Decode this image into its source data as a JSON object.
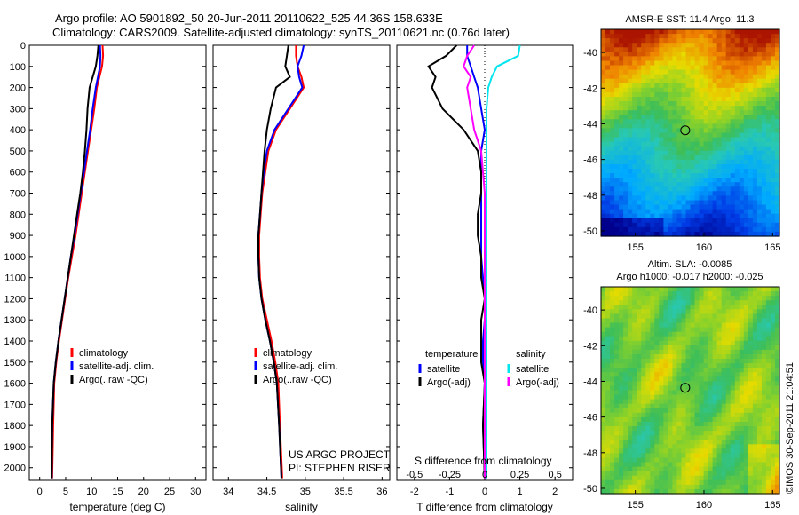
{
  "title_line1": "Argo profile: AO 5901892_50 20-Jun-2011 20110622_525 44.36S 158.633E",
  "title_line2": "Climatology: CARS2009. Satellite-adjusted climatology: synTS_20110621.nc (0.76d later)",
  "credit": "US ARGO PROJECT",
  "pi": "PI: STEPHEN RISER",
  "stamp": "©IMOS 30-Sep-2011 21:04:51",
  "colors": {
    "climatology": "#ff0000",
    "satellite": "#0000ff",
    "argo": "#000000",
    "satellite_s": "#00e5ee",
    "argo_s": "#ff00ff"
  },
  "chart_data": [
    {
      "type": "line",
      "xlabel": "temperature (deg C)",
      "ylabel": "",
      "xlim": [
        -2,
        32
      ],
      "ylim": [
        2060,
        0
      ],
      "xticks": [
        0,
        5,
        10,
        15,
        20,
        25,
        30
      ],
      "yticks": [
        0,
        100,
        200,
        300,
        400,
        500,
        600,
        700,
        800,
        900,
        1000,
        1100,
        1200,
        1300,
        1400,
        1500,
        1600,
        1700,
        1800,
        1900,
        2000
      ],
      "legend": [
        "climatology",
        "satellite-adj. clim.",
        "Argo(..raw -QC)"
      ],
      "series": [
        {
          "name": "climatology",
          "color": "#ff0000",
          "x": [
            12.1,
            12.2,
            12.0,
            11.5,
            11.0,
            10.5,
            9.9,
            9.3,
            8.7,
            8.1,
            7.5,
            6.9,
            6.2,
            5.5,
            4.9,
            4.3,
            3.7,
            3.2,
            2.8,
            2.6,
            2.4
          ],
          "y": [
            0,
            50,
            100,
            150,
            200,
            300,
            400,
            500,
            600,
            700,
            800,
            900,
            1000,
            1100,
            1200,
            1300,
            1400,
            1500,
            1600,
            1800,
            2050
          ]
        },
        {
          "name": "satellite",
          "color": "#0000ff",
          "x": [
            11.6,
            11.7,
            11.6,
            11.2,
            10.8,
            10.2,
            9.7,
            9.1,
            8.5,
            7.9,
            7.3,
            6.7,
            6.0,
            5.4,
            4.8,
            4.2,
            3.6,
            3.1,
            2.7,
            2.4,
            2.3
          ],
          "y": [
            0,
            50,
            100,
            150,
            200,
            300,
            400,
            500,
            600,
            700,
            800,
            900,
            1000,
            1100,
            1200,
            1300,
            1400,
            1500,
            1600,
            1800,
            2050
          ]
        },
        {
          "name": "argo",
          "color": "#000000",
          "x": [
            11.3,
            11.1,
            10.8,
            10.2,
            9.6,
            9.2,
            9.0,
            8.7,
            8.3,
            7.8,
            7.2,
            6.6,
            6.0,
            5.4,
            4.8,
            4.2,
            3.6,
            3.1,
            2.7,
            2.4,
            2.3
          ],
          "y": [
            0,
            50,
            100,
            150,
            200,
            300,
            400,
            500,
            600,
            700,
            800,
            900,
            1000,
            1100,
            1200,
            1300,
            1400,
            1500,
            1600,
            1800,
            2050
          ]
        }
      ]
    },
    {
      "type": "line",
      "xlabel": "salinity",
      "ylabel": "",
      "xlim": [
        33.8,
        36.1
      ],
      "ylim": [
        2060,
        0
      ],
      "xticks": [
        34,
        34.5,
        35,
        35.5,
        36
      ],
      "legend": [
        "climatology",
        "satellite-adj. clim.",
        "Argo(..raw -QC)"
      ],
      "series": [
        {
          "name": "climatology",
          "color": "#ff0000",
          "x": [
            34.88,
            34.88,
            34.9,
            34.95,
            34.98,
            34.8,
            34.62,
            34.52,
            34.48,
            34.44,
            34.42,
            34.4,
            34.4,
            34.41,
            34.44,
            34.5,
            34.56,
            34.61,
            34.65,
            34.67,
            34.7
          ],
          "y": [
            0,
            50,
            100,
            150,
            200,
            300,
            400,
            500,
            600,
            700,
            800,
            900,
            1000,
            1100,
            1200,
            1300,
            1400,
            1500,
            1600,
            1800,
            2050
          ]
        },
        {
          "name": "satellite",
          "color": "#0000ff",
          "x": [
            34.98,
            34.95,
            34.9,
            34.92,
            34.96,
            34.78,
            34.6,
            34.5,
            34.46,
            34.43,
            34.41,
            34.39,
            34.39,
            34.4,
            34.43,
            34.48,
            34.54,
            34.59,
            34.63,
            34.66,
            34.69
          ],
          "y": [
            0,
            50,
            100,
            150,
            200,
            300,
            400,
            500,
            600,
            700,
            800,
            900,
            1000,
            1100,
            1200,
            1300,
            1400,
            1500,
            1600,
            1800,
            2050
          ]
        },
        {
          "name": "argo",
          "color": "#000000",
          "x": [
            34.78,
            34.76,
            34.74,
            34.8,
            34.62,
            34.55,
            34.5,
            34.47,
            34.45,
            34.43,
            34.41,
            34.39,
            34.39,
            34.4,
            34.43,
            34.48,
            34.54,
            34.59,
            34.63,
            34.66,
            34.69
          ],
          "y": [
            0,
            50,
            100,
            150,
            200,
            300,
            400,
            500,
            600,
            700,
            800,
            900,
            1000,
            1100,
            1200,
            1300,
            1400,
            1500,
            1600,
            1800,
            2050
          ]
        }
      ]
    },
    {
      "type": "line",
      "xlabel": "T difference from climatology",
      "xlabel2": "S difference from climatology",
      "xlim": [
        -2.5,
        2.5
      ],
      "ylim": [
        2060,
        0
      ],
      "xticks": [
        -2,
        -1,
        0,
        1,
        2
      ],
      "xticks_s": [
        "-0.5",
        "-0.25",
        "0",
        "0.25",
        "0.5"
      ],
      "legend_heads": [
        "temperature",
        "salinity"
      ],
      "legend": [
        "satellite",
        "Argo(-adj)",
        "satellite",
        "Argo(-adj)"
      ],
      "series": [
        {
          "name": "satellite",
          "color": "#0000ff",
          "x": [
            -0.5,
            -0.5,
            -0.4,
            -0.3,
            -0.2,
            -0.1,
            0.0,
            -0.1,
            -0.1,
            -0.1,
            -0.1,
            -0.1,
            -0.1,
            -0.05,
            0.0,
            0.0,
            -0.05,
            -0.05,
            0.0,
            -0.05,
            0.0
          ],
          "y": [
            0,
            50,
            100,
            150,
            200,
            300,
            400,
            500,
            600,
            700,
            800,
            900,
            1000,
            1100,
            1200,
            1300,
            1400,
            1500,
            1600,
            1800,
            2050
          ]
        },
        {
          "name": "argo",
          "color": "#000000",
          "x": [
            -0.8,
            -1.1,
            -1.6,
            -1.4,
            -1.5,
            -1.2,
            -0.6,
            -0.2,
            -0.1,
            -0.1,
            -0.2,
            -0.2,
            -0.1,
            -0.1,
            0.0,
            -0.1,
            -0.1,
            -0.1,
            0.0,
            -0.05,
            0.0
          ],
          "y": [
            0,
            50,
            100,
            150,
            200,
            300,
            400,
            500,
            600,
            700,
            800,
            900,
            1000,
            1100,
            1200,
            1300,
            1400,
            1500,
            1600,
            1800,
            2050
          ]
        },
        {
          "name": "satellite_s",
          "color": "#00e5ee",
          "x": [
            1.0,
            0.95,
            0.35,
            0.2,
            0.1,
            0.05,
            0.05,
            0.05,
            0.05,
            0.05,
            0.05,
            0.05,
            0.05,
            0.05,
            0.05,
            0.05,
            0.05,
            0.05,
            0.05,
            0.05,
            0.05
          ],
          "y": [
            0,
            50,
            100,
            150,
            200,
            300,
            400,
            500,
            600,
            700,
            800,
            900,
            1000,
            1100,
            1200,
            1300,
            1400,
            1500,
            1600,
            1800,
            2050
          ]
        },
        {
          "name": "argo_s",
          "color": "#ff00ff",
          "x": [
            -0.3,
            -0.5,
            -0.6,
            -0.4,
            -0.5,
            -0.4,
            -0.3,
            -0.1,
            -0.05,
            0.0,
            0.0,
            0.0,
            0.0,
            0.0,
            0.0,
            0.0,
            0.0,
            0.0,
            0.0,
            0.0,
            0.0
          ],
          "y": [
            0,
            50,
            100,
            150,
            200,
            300,
            400,
            500,
            600,
            700,
            800,
            900,
            1000,
            1100,
            1200,
            1300,
            1400,
            1500,
            1600,
            1800,
            2050
          ]
        }
      ]
    },
    {
      "type": "heatmap",
      "title": "AMSR-E SST: 11.4 Argo: 11.3",
      "xlim": [
        152.5,
        165.5
      ],
      "ylim": [
        -50.3,
        -38.7
      ],
      "xticks": [
        155,
        160,
        165
      ],
      "yticks": [
        -40,
        -42,
        -44,
        -46,
        -48,
        -50
      ],
      "marker": {
        "lon": 158.633,
        "lat": -44.36
      }
    },
    {
      "type": "heatmap",
      "title": "Altim. SLA: -0.0085",
      "subtitle": "Argo h1000: -0.017 h2000: -0.025",
      "xlim": [
        152.5,
        165.5
      ],
      "ylim": [
        -50.3,
        -38.7
      ],
      "xticks": [
        155,
        160,
        165
      ],
      "yticks": [
        -40,
        -42,
        -44,
        -46,
        -48,
        -50
      ],
      "marker": {
        "lon": 158.633,
        "lat": -44.36
      }
    }
  ]
}
